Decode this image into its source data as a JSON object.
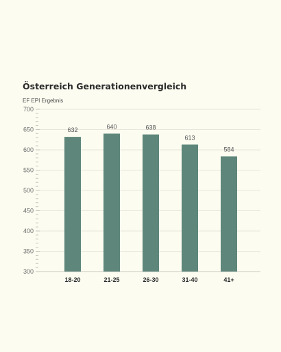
{
  "colors": {
    "background": "#fcfcf1",
    "bar": "#5e867a",
    "grid": "#e6e6dc",
    "axis": "#c9c9c0"
  },
  "chart_data": {
    "type": "bar",
    "title": "Österreich Generationenvergleich",
    "ylabel": "EF EPI Ergebnis",
    "xlabel": "",
    "categories": [
      "18-20",
      "21-25",
      "26-30",
      "31-40",
      "41+"
    ],
    "values": [
      632,
      640,
      638,
      613,
      584
    ],
    "value_labels": [
      "632",
      "640",
      "638",
      "613",
      "584"
    ],
    "ylim": [
      300,
      700
    ],
    "yticks": [
      300,
      350,
      400,
      450,
      500,
      550,
      600,
      650,
      700
    ],
    "ytick_labels": [
      "300",
      "350",
      "400",
      "450",
      "500",
      "550",
      "600",
      "650",
      "700"
    ],
    "grid": true,
    "legend": "none"
  }
}
